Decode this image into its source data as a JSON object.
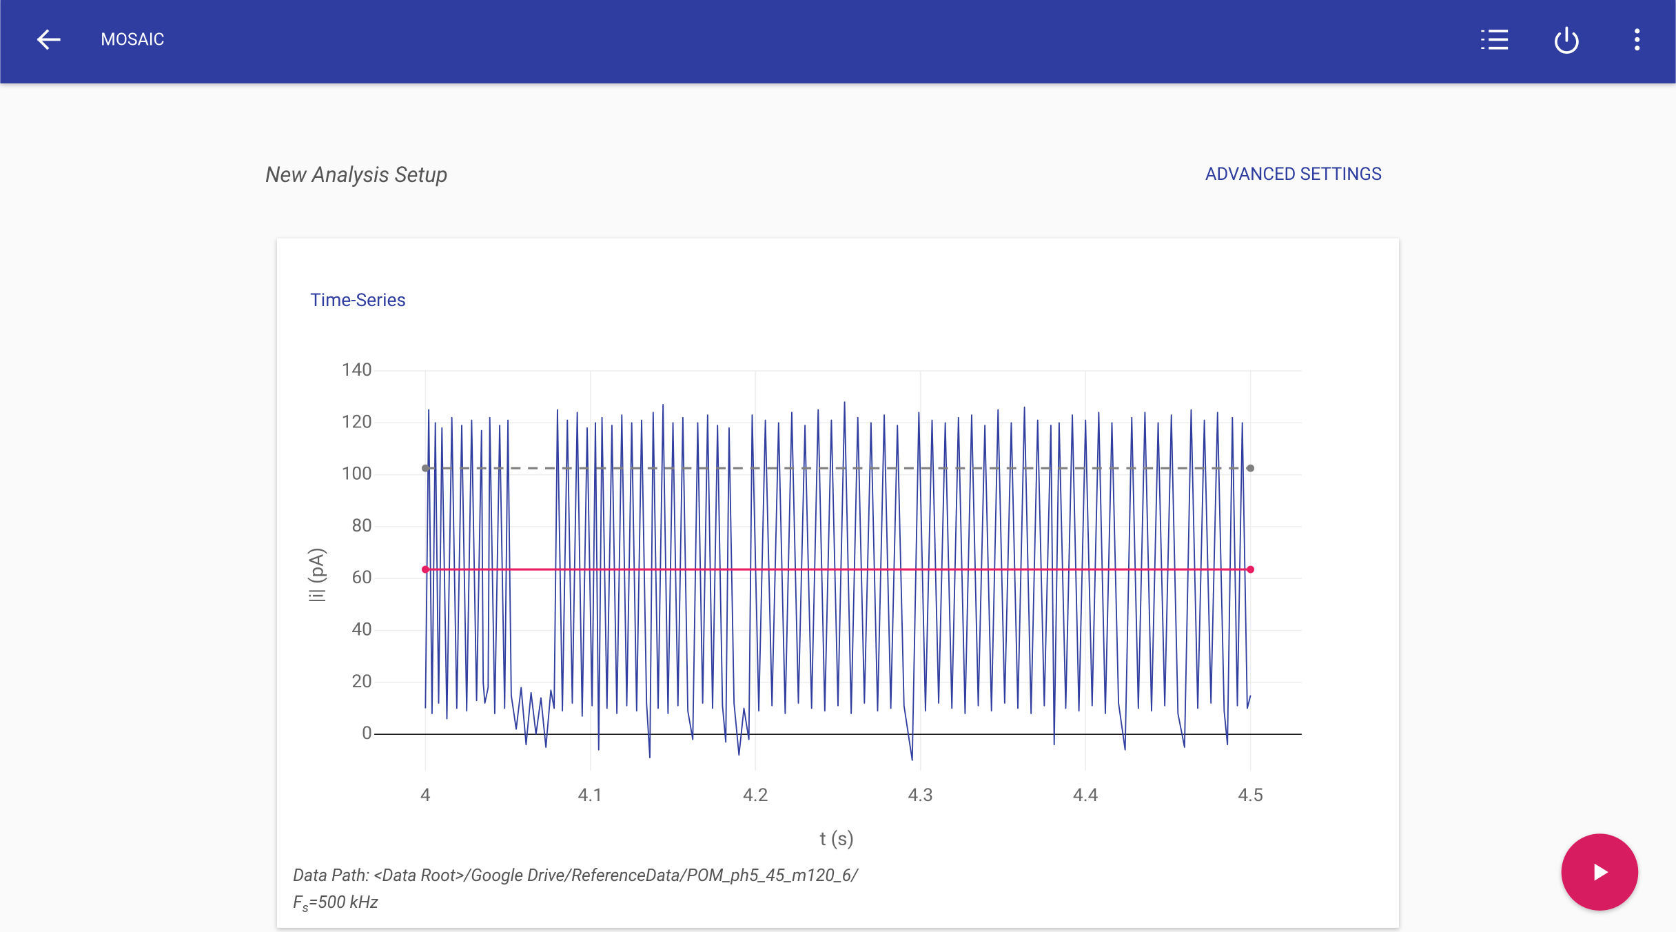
{
  "header": {
    "title": "MOSAIC"
  },
  "page": {
    "heading": "New Analysis Setup",
    "advanced_button": "ADVANCED SETTINGS"
  },
  "card": {
    "title": "Time-Series",
    "footer": {
      "data_path": "Data Path: <Data Root>/Google Drive/ReferenceData/POM_ph5_45_m120_6/",
      "fs_symbol": "F",
      "fs_subscript": "s",
      "fs_value": "=500 kHz"
    }
  },
  "chart_data": {
    "type": "line",
    "x_label": "t (s)",
    "y_label": "|i| (pA)",
    "xlim": [
      3.969,
      4.531
    ],
    "xticks": [
      4,
      4.1,
      4.2,
      4.3,
      4.4,
      4.5
    ],
    "ylim": [
      -14,
      140
    ],
    "yticks": [
      0,
      20,
      40,
      60,
      80,
      100,
      120,
      140
    ],
    "grid": true,
    "series": [
      {
        "color": "#303f9f",
        "dash": "solid",
        "markers": false,
        "x": [
          4.0,
          4.002,
          4.004,
          4.006,
          4.008,
          4.01,
          4.013,
          4.016,
          4.019,
          4.022,
          4.025,
          4.028,
          4.031,
          4.034,
          4.035,
          4.036,
          4.038,
          4.039,
          4.042,
          4.045,
          4.048,
          4.05,
          4.052,
          4.055,
          4.058,
          4.061,
          4.064,
          4.067,
          4.07,
          4.073,
          4.076,
          4.078,
          4.08,
          4.083,
          4.086,
          4.089,
          4.092,
          4.095,
          4.098,
          4.101,
          4.103,
          4.105,
          4.107,
          4.11,
          4.113,
          4.116,
          4.119,
          4.122,
          4.125,
          4.128,
          4.131,
          4.134,
          4.136,
          4.138,
          4.141,
          4.144,
          4.147,
          4.15,
          4.153,
          4.156,
          4.159,
          4.162,
          4.165,
          4.168,
          4.171,
          4.174,
          4.177,
          4.18,
          4.182,
          4.184,
          4.187,
          4.19,
          4.193,
          4.196,
          4.198,
          4.202,
          4.206,
          4.21,
          4.214,
          4.218,
          4.222,
          4.226,
          4.23,
          4.234,
          4.238,
          4.242,
          4.246,
          4.25,
          4.254,
          4.258,
          4.262,
          4.266,
          4.27,
          4.274,
          4.278,
          4.282,
          4.286,
          4.29,
          4.295,
          4.299,
          4.303,
          4.307,
          4.311,
          4.315,
          4.319,
          4.323,
          4.327,
          4.331,
          4.335,
          4.339,
          4.343,
          4.347,
          4.351,
          4.355,
          4.359,
          4.363,
          4.367,
          4.371,
          4.375,
          4.379,
          4.381,
          4.384,
          4.388,
          4.392,
          4.396,
          4.4,
          4.404,
          4.408,
          4.412,
          4.416,
          4.42,
          4.424,
          4.428,
          4.432,
          4.436,
          4.44,
          4.444,
          4.448,
          4.452,
          4.456,
          4.46,
          4.464,
          4.468,
          4.472,
          4.476,
          4.48,
          4.484,
          4.486,
          4.489,
          4.492,
          4.495,
          4.498,
          4.5
        ],
        "values": [
          10,
          125,
          8,
          120,
          12,
          118,
          6,
          122,
          10,
          119,
          9,
          121,
          13,
          117,
          20,
          12,
          18,
          122,
          8,
          119,
          10,
          121,
          15,
          2,
          18,
          -4,
          16,
          0,
          14,
          -5,
          17,
          10,
          125,
          9,
          121,
          12,
          124,
          7,
          118,
          11,
          120,
          -6,
          122,
          10,
          119,
          8,
          123,
          11,
          120,
          9,
          121,
          12,
          -9,
          124,
          10,
          127,
          8,
          120,
          11,
          122,
          9,
          -2,
          120,
          12,
          123,
          10,
          119,
          11,
          -3,
          118,
          12,
          -8,
          10,
          -2,
          123,
          9,
          121,
          11,
          120,
          8,
          124,
          12,
          119,
          10,
          125,
          9,
          121,
          11,
          128,
          8,
          122,
          12,
          120,
          9,
          123,
          10,
          119,
          11,
          -10,
          124,
          9,
          121,
          12,
          120,
          10,
          122,
          8,
          123,
          11,
          119,
          9,
          125,
          12,
          120,
          10,
          126,
          8,
          121,
          11,
          119,
          -4,
          120,
          10,
          123,
          9,
          121,
          11,
          124,
          8,
          120,
          12,
          -6,
          122,
          10,
          124,
          9,
          120,
          11,
          123,
          8,
          -5,
          125,
          10,
          121,
          12,
          124,
          9,
          -4,
          122,
          11,
          120,
          10,
          15
        ]
      },
      {
        "color": "#808080",
        "dash": "dash",
        "markers": true,
        "x": [
          4,
          4.5
        ],
        "values": [
          102.5,
          102.5
        ]
      },
      {
        "color": "#e91e63",
        "dash": "solid",
        "markers": true,
        "x": [
          4,
          4.5
        ],
        "values": [
          63.5,
          63.5
        ]
      }
    ]
  }
}
